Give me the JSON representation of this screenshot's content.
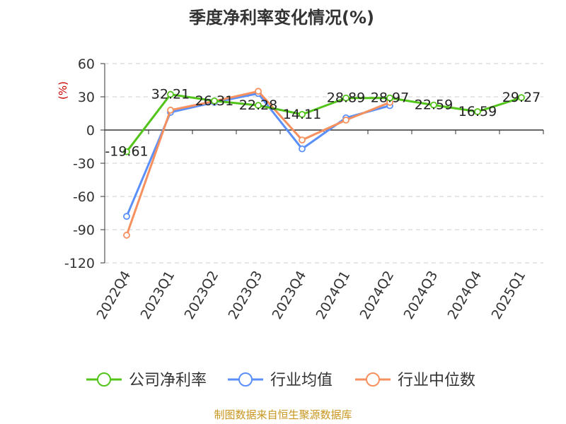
{
  "chart_data": {
    "type": "line",
    "title": "季度净利率变化情况(%)",
    "ylabel": "(%)",
    "categories": [
      "2022Q4",
      "2023Q1",
      "2023Q2",
      "2023Q3",
      "2023Q4",
      "2024Q1",
      "2024Q2",
      "2024Q3",
      "2024Q4",
      "2025Q1"
    ],
    "ylim": [
      -120,
      60
    ],
    "yticks": [
      60,
      30,
      0,
      -30,
      -60,
      -90,
      -120
    ],
    "grid": true,
    "legend_position": "bottom",
    "series": [
      {
        "name": "公司净利率",
        "color": "#52c41a",
        "values": [
          -19.61,
          32.21,
          26.31,
          22.28,
          14.11,
          28.89,
          28.97,
          22.59,
          16.59,
          29.27
        ],
        "labels": [
          "-19.61",
          "32.21",
          "26.31",
          "22.28",
          "14.11",
          "28.89",
          "28.97",
          "22.59",
          "16.59",
          "29.27"
        ]
      },
      {
        "name": "行业均值",
        "color": "#5b8ff9",
        "values": [
          -78,
          16,
          25,
          33,
          -17,
          11,
          22,
          null,
          null,
          null
        ]
      },
      {
        "name": "行业中位数",
        "color": "#f6905e",
        "values": [
          -95,
          18,
          26,
          35,
          -9,
          9,
          25,
          null,
          null,
          null
        ]
      }
    ]
  },
  "footer": {
    "source": "制图数据来自恒生聚源数据库"
  }
}
